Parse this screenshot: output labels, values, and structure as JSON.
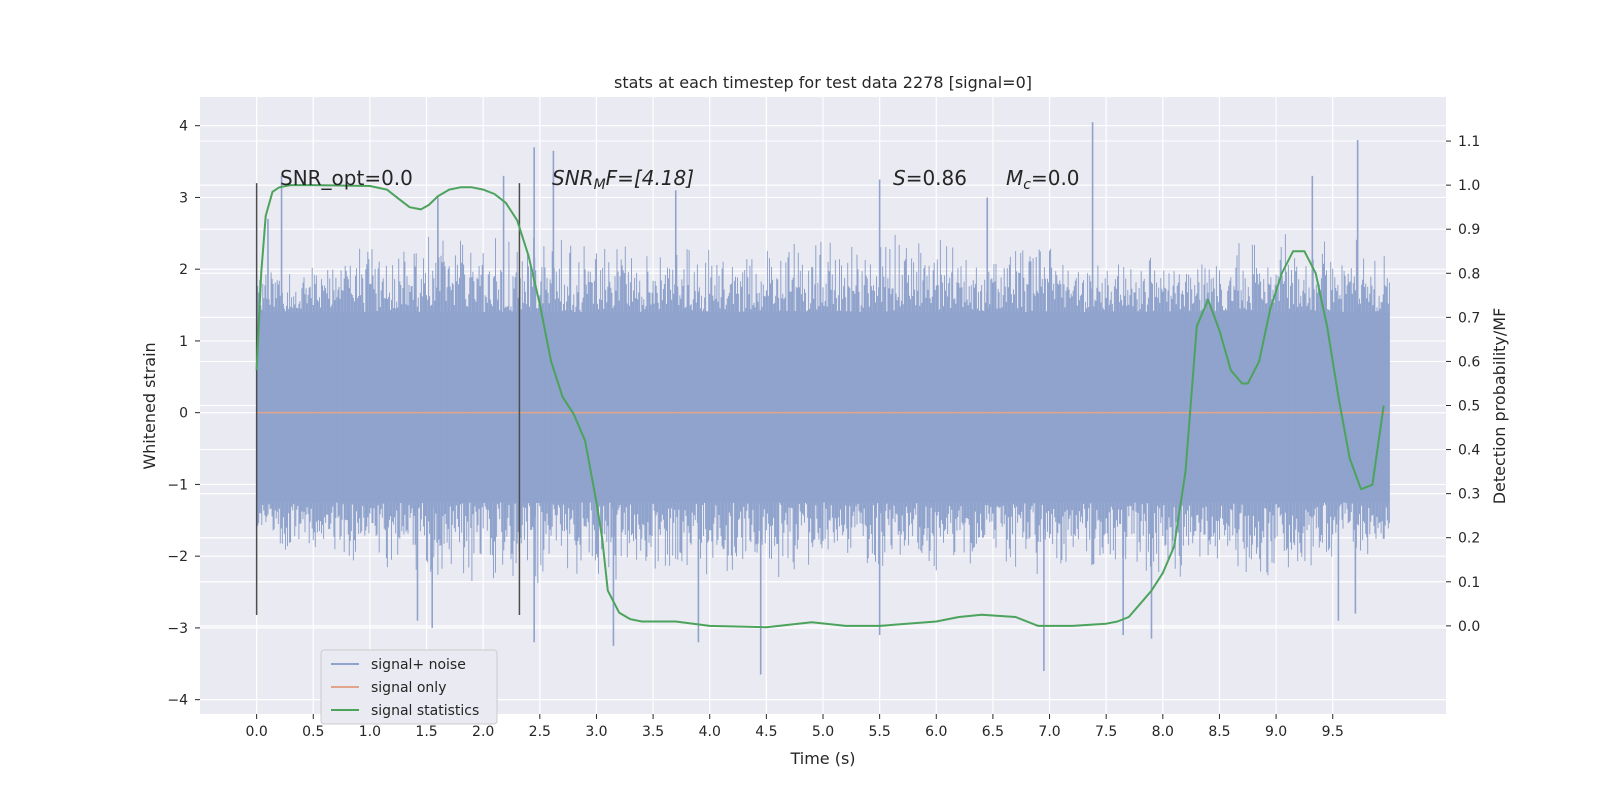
{
  "chart_data": {
    "type": "line",
    "title": "stats at each timestep for test data 2278 [signal=0]",
    "xlabel": "Time (s)",
    "ylabel": "Whitened strain",
    "ylabel_right": "Detection probability/MF",
    "xlim": [
      -0.5,
      10.5
    ],
    "ylim": [
      -4.2,
      4.4
    ],
    "ylim_right": [
      -0.2,
      1.2
    ],
    "x_ticks": [
      "0.0",
      "0.5",
      "1.0",
      "1.5",
      "2.0",
      "2.5",
      "3.0",
      "3.5",
      "4.0",
      "4.5",
      "5.0",
      "5.5",
      "6.0",
      "6.5",
      "7.0",
      "7.5",
      "8.0",
      "8.5",
      "9.0",
      "9.5"
    ],
    "y_ticks": [
      "4",
      "3",
      "2",
      "1",
      "0",
      "−1",
      "−2",
      "−3",
      "−4"
    ],
    "y_ticks_right": [
      "1.1",
      "1.0",
      "0.9",
      "0.8",
      "0.7",
      "0.6",
      "0.5",
      "0.4",
      "0.3",
      "0.2",
      "0.1",
      "0.0"
    ],
    "grid": true,
    "legend_position": "lower-left",
    "annotations": {
      "snr_opt": "SNR_opt=0.0",
      "snr_mf_sym": "SNR",
      "snr_mf_sub": "M",
      "snr_mf_tail": "F=[4.18]",
      "s_sym": "S",
      "s_val": "=0.86",
      "mc_sym": "M",
      "mc_sub": "c",
      "mc_val": "=0.0"
    },
    "vertical_lines_x": [
      0.0,
      2.32
    ],
    "vertical_lines_yrange": [
      -2.82,
      3.2
    ],
    "series": [
      {
        "name": "signal+ noise",
        "color": "#8fa3cc",
        "axis": "left",
        "x_range": [
          0.0,
          10.0
        ],
        "envelope_upper": [
          [
            0.0,
            2.0
          ],
          [
            1.0,
            2.4
          ],
          [
            2.0,
            2.6
          ],
          [
            3.0,
            2.5
          ],
          [
            4.0,
            2.4
          ],
          [
            5.0,
            2.5
          ],
          [
            6.0,
            2.6
          ],
          [
            7.0,
            2.4
          ],
          [
            8.0,
            2.3
          ],
          [
            9.0,
            2.6
          ],
          [
            10.0,
            2.4
          ]
        ],
        "envelope_lower": [
          [
            0.0,
            -2.0
          ],
          [
            1.0,
            -2.3
          ],
          [
            2.0,
            -2.5
          ],
          [
            3.0,
            -2.4
          ],
          [
            4.0,
            -2.4
          ],
          [
            5.0,
            -2.3
          ],
          [
            6.0,
            -2.3
          ],
          [
            7.0,
            -2.3
          ],
          [
            8.0,
            -2.4
          ],
          [
            9.0,
            -2.5
          ],
          [
            10.0,
            -2.0
          ]
        ],
        "band": [
          -1.25,
          1.4
        ],
        "peaks": [
          [
            0.1,
            2.7
          ],
          [
            0.22,
            3.3
          ],
          [
            1.6,
            3.0
          ],
          [
            2.18,
            3.3
          ],
          [
            2.45,
            3.7
          ],
          [
            2.62,
            3.65
          ],
          [
            3.7,
            3.1
          ],
          [
            5.5,
            3.25
          ],
          [
            6.45,
            3.0
          ],
          [
            7.38,
            4.05
          ],
          [
            9.32,
            3.3
          ],
          [
            9.72,
            3.8
          ]
        ],
        "troughs": [
          [
            1.42,
            -2.9
          ],
          [
            1.55,
            -3.0
          ],
          [
            2.45,
            -3.2
          ],
          [
            3.15,
            -3.25
          ],
          [
            3.9,
            -3.2
          ],
          [
            4.45,
            -3.65
          ],
          [
            5.5,
            -3.1
          ],
          [
            6.95,
            -3.6
          ],
          [
            7.65,
            -3.1
          ],
          [
            7.9,
            -3.15
          ],
          [
            9.55,
            -2.9
          ],
          [
            9.7,
            -2.8
          ]
        ]
      },
      {
        "name": "signal only",
        "color": "#e3a58a",
        "axis": "left",
        "x": [
          0.0,
          10.0
        ],
        "y": [
          0.0,
          0.0
        ]
      },
      {
        "name": "signal statistics",
        "color": "#4ca35c",
        "axis": "right",
        "x": [
          0.0,
          0.04,
          0.08,
          0.14,
          0.2,
          0.3,
          0.5,
          1.0,
          1.15,
          1.25,
          1.35,
          1.45,
          1.52,
          1.6,
          1.7,
          1.8,
          1.9,
          2.0,
          2.1,
          2.2,
          2.3,
          2.4,
          2.5,
          2.6,
          2.7,
          2.8,
          2.9,
          3.0,
          3.05,
          3.1,
          3.2,
          3.3,
          3.4,
          3.5,
          3.7,
          4.0,
          4.5,
          4.9,
          5.2,
          5.5,
          6.0,
          6.2,
          6.4,
          6.7,
          6.9,
          7.2,
          7.5,
          7.6,
          7.7,
          7.8,
          7.9,
          8.0,
          8.1,
          8.2,
          8.3,
          8.4,
          8.5,
          8.6,
          8.7,
          8.75,
          8.85,
          8.95,
          9.05,
          9.15,
          9.25,
          9.35,
          9.45,
          9.55,
          9.65,
          9.75,
          9.85,
          9.95
        ],
        "y": [
          0.58,
          0.8,
          0.93,
          0.985,
          0.995,
          1.0,
          1.0,
          0.998,
          0.99,
          0.97,
          0.95,
          0.945,
          0.955,
          0.975,
          0.99,
          0.995,
          0.995,
          0.99,
          0.98,
          0.96,
          0.92,
          0.84,
          0.73,
          0.6,
          0.52,
          0.48,
          0.42,
          0.28,
          0.2,
          0.08,
          0.03,
          0.015,
          0.01,
          0.01,
          0.01,
          0.0,
          -0.003,
          0.008,
          0.0,
          0.0,
          0.01,
          0.02,
          0.025,
          0.02,
          0.0,
          0.0,
          0.005,
          0.01,
          0.02,
          0.05,
          0.08,
          0.12,
          0.18,
          0.35,
          0.68,
          0.74,
          0.67,
          0.58,
          0.55,
          0.55,
          0.6,
          0.72,
          0.8,
          0.85,
          0.85,
          0.8,
          0.68,
          0.52,
          0.38,
          0.31,
          0.32,
          0.5
        ]
      }
    ]
  }
}
